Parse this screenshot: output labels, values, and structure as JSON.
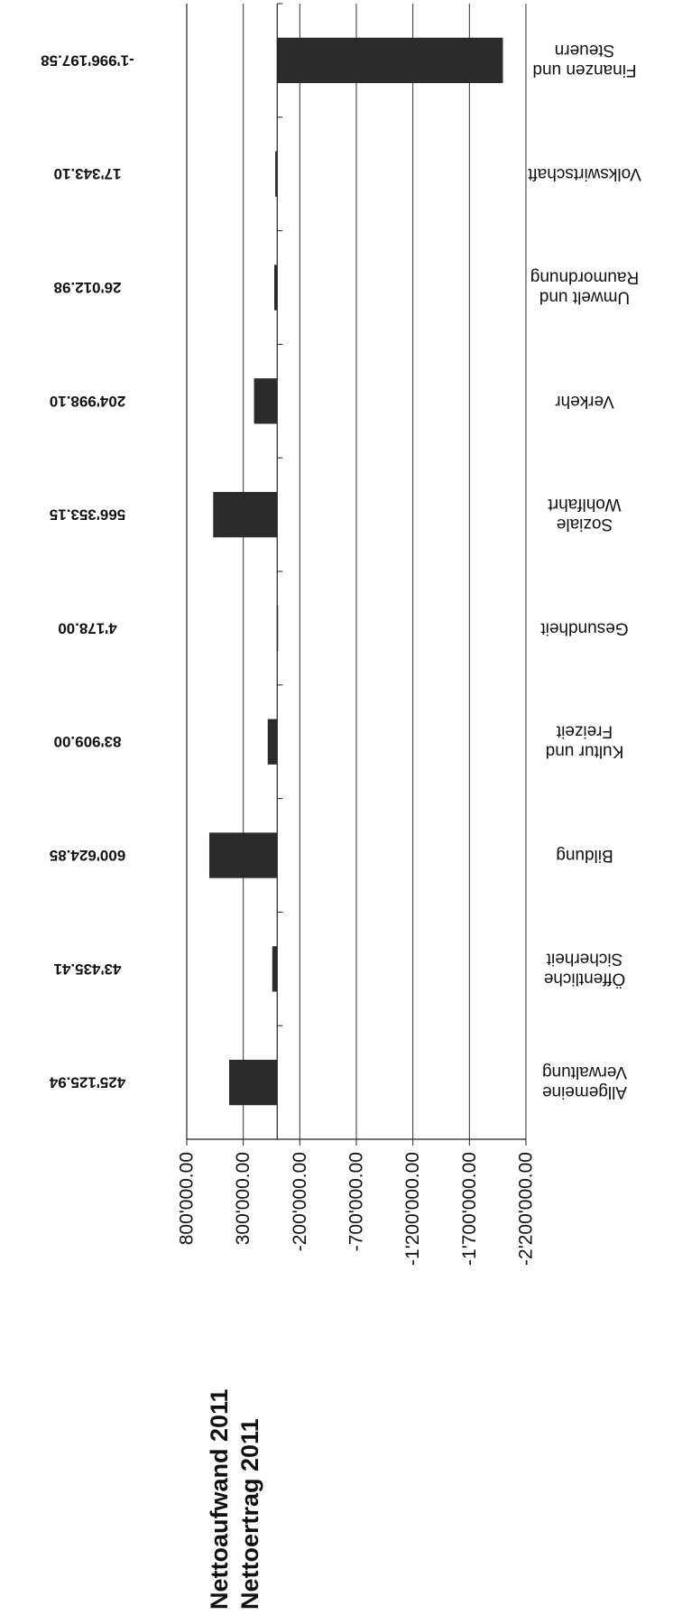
{
  "chart_data": {
    "type": "bar",
    "orientation": "horizontal",
    "rendering": "rotated-180",
    "title_lines": [
      "Nettoaufwand 2011",
      "Nettoertrag 2011"
    ],
    "xlim": [
      -2200000,
      800000
    ],
    "ticks": [
      "800'000.00",
      "300'000.00",
      "-200'000.00",
      "-700'000.00",
      "-1'200'000.00",
      "-1'700'000.00",
      "-2'200'000.00"
    ],
    "tick_values": [
      800000,
      300000,
      -200000,
      -700000,
      -1200000,
      -1700000,
      -2200000
    ],
    "grid": true,
    "categories": [
      [
        "Allgemeine",
        "Verwaltung"
      ],
      [
        "Öffentliche",
        "Sicherheit"
      ],
      [
        "Bildung"
      ],
      [
        "Kultur und",
        "Freizeit"
      ],
      [
        "Gesundheit"
      ],
      [
        "Soziale",
        "Wohlfahrt"
      ],
      [
        "Verkehr"
      ],
      [
        "Umwelt und",
        "Raumordnung"
      ],
      [
        "Volkswirtschaft"
      ],
      [
        "Finanzen und",
        "Steuern"
      ]
    ],
    "values": [
      425125.94,
      43435.41,
      600624.85,
      83909.0,
      4178.0,
      566353.15,
      204998.1,
      26012.98,
      17343.1,
      -1996197.58
    ],
    "value_labels": [
      "425'125.94",
      "43'435.41",
      "600'624.85",
      "83'909.00",
      "4'178.00",
      "566'353.15",
      "204'998.10",
      "26'012.98",
      "17'343.10",
      "-1'996'197.58"
    ],
    "bar_color": "#2b2b2b"
  }
}
